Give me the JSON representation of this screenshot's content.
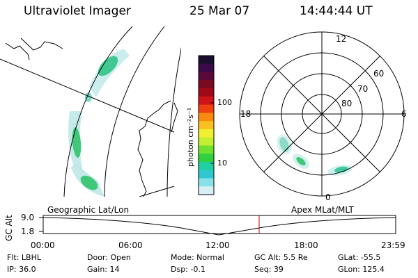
{
  "header": {
    "title": "Ultraviolet Imager",
    "date": "25 Mar 07",
    "time": "14:44:44 UT"
  },
  "colorbar": {
    "label": "photon cm⁻²s⁻¹",
    "ticks": [
      "100",
      "10"
    ],
    "colors": [
      "#1a0f2e",
      "#3a0a4a",
      "#5a0a3a",
      "#7a0a20",
      "#a00a18",
      "#d0121a",
      "#f04010",
      "#f88a10",
      "#f8c020",
      "#f0f030",
      "#c0f030",
      "#70e030",
      "#30d040",
      "#20d0a0",
      "#30c8d0",
      "#8ae0e8",
      "#d8f0f4"
    ]
  },
  "left_map": {
    "label": "Geographic Lat/Lon"
  },
  "polar_plot": {
    "label": "Apex MLat/MLT",
    "hour_labels": {
      "top": "12",
      "bottom": "0",
      "left": "18",
      "right": "6"
    },
    "lat_labels": [
      "60",
      "70",
      "80"
    ]
  },
  "altitude_plot": {
    "ylabel": "GC Alt",
    "yticks": [
      "9.0",
      "1.8"
    ],
    "xticks": [
      "00:00",
      "06:00",
      "12:00",
      "18:00",
      "23:59"
    ],
    "marker_time": "14:44:44",
    "marker_color": "#cc0000"
  },
  "info": {
    "filter": "Flt: LBHL",
    "ip": "IP: 36.0",
    "door": "Door: Open",
    "gain": "Gain: 14",
    "mode": "Mode: Normal",
    "dsp": "Dsp:    -0.1",
    "gc_alt": "GC Alt: 5.5 Re",
    "seq": "Seq: 39",
    "glat": "GLat: -55.5",
    "glon": "GLon: 125.4"
  }
}
